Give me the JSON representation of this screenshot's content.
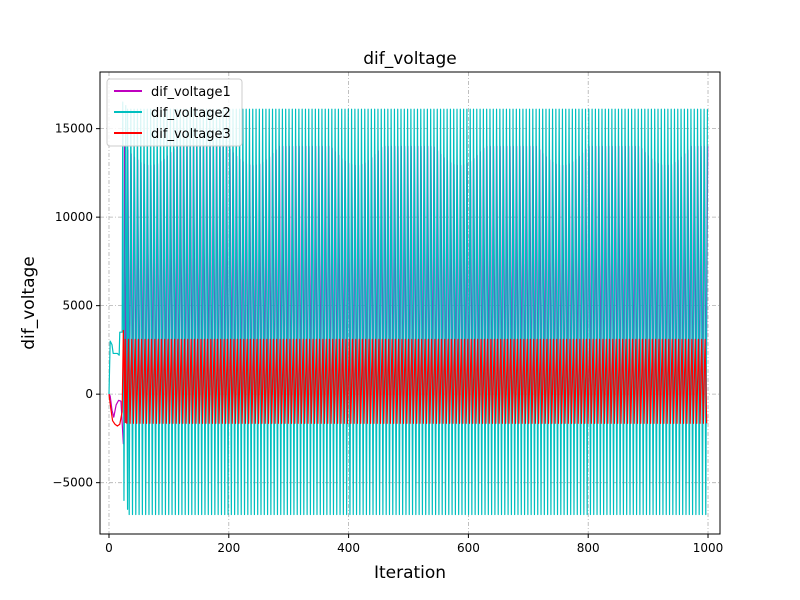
{
  "chart_data": {
    "type": "line",
    "title": "dif_voltage",
    "xlabel": "Iteration",
    "ylabel": "dif_voltage",
    "xlim": [
      -15,
      1020
    ],
    "ylim": [
      -7900,
      18200
    ],
    "xticks": [
      0,
      200,
      400,
      600,
      800,
      1000
    ],
    "yticks": [
      -5000,
      0,
      5000,
      10000,
      15000
    ],
    "grid": true,
    "legend_position": "top-left",
    "series": [
      {
        "name": "dif_voltage1",
        "color": "#bf00bf",
        "pattern": {
          "transient": [
            [
              0,
              0
            ],
            [
              2,
              -100
            ],
            [
              5,
              -900
            ],
            [
              8,
              -1300
            ],
            [
              12,
              -600
            ],
            [
              16,
              -350
            ],
            [
              20,
              -400
            ],
            [
              22,
              -1600
            ],
            [
              24,
              -2800
            ],
            [
              26,
              -1200
            ]
          ],
          "oscillation": {
            "start": 26,
            "end": 1000,
            "period": 5.5,
            "min": -1600,
            "max": 14000,
            "envelope_period": 172,
            "envelope_min": 12200
          }
        }
      },
      {
        "name": "dif_voltage2",
        "color": "#00bfbf",
        "pattern": {
          "transient": [
            [
              0,
              0
            ],
            [
              2,
              3000
            ],
            [
              5,
              2800
            ],
            [
              7,
              2300
            ],
            [
              14,
              2300
            ],
            [
              17,
              2200
            ],
            [
              18,
              3500
            ],
            [
              22,
              3500
            ],
            [
              23,
              16500
            ],
            [
              25,
              -6000
            ],
            [
              28,
              16300
            ],
            [
              31,
              -6500
            ]
          ],
          "oscillation": {
            "start": 31,
            "end": 1000,
            "period": 5.5,
            "min": -6800,
            "max": 16100
          }
        }
      },
      {
        "name": "dif_voltage3",
        "color": "#ff0000",
        "pattern": {
          "transient": [
            [
              0,
              0
            ],
            [
              3,
              -800
            ],
            [
              6,
              -1500
            ],
            [
              10,
              -1700
            ],
            [
              14,
              -1800
            ],
            [
              18,
              -1700
            ],
            [
              22,
              -1000
            ],
            [
              24,
              3600
            ],
            [
              27,
              -1600
            ]
          ],
          "oscillation": {
            "start": 27,
            "end": 1000,
            "period": 5.5,
            "min": -1650,
            "max": 3100
          }
        }
      }
    ]
  }
}
